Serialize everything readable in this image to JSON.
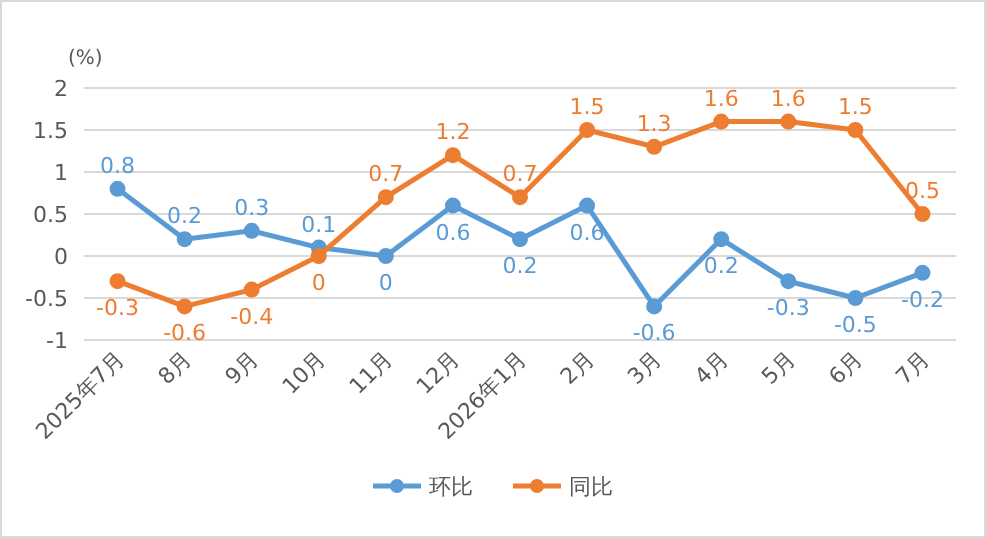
{
  "chart_data": {
    "type": "line",
    "ylabel": "(%)",
    "categories": [
      "2025年7月",
      "8月",
      "9月",
      "10月",
      "11月",
      "12月",
      "2026年1月",
      "2月",
      "3月",
      "4月",
      "5月",
      "6月",
      "7月"
    ],
    "series": [
      {
        "name": "环比",
        "color": "#5b9bd5",
        "values": [
          0.8,
          0.2,
          0.3,
          0.1,
          0,
          0.6,
          0.2,
          0.6,
          -0.6,
          0.2,
          -0.3,
          -0.5,
          -0.2
        ]
      },
      {
        "name": "同比",
        "color": "#ed7d31",
        "values": [
          -0.3,
          -0.6,
          -0.4,
          0,
          0.7,
          1.2,
          0.7,
          1.5,
          1.3,
          1.6,
          1.6,
          1.5,
          0.5
        ]
      }
    ],
    "ylim": [
      -1,
      2
    ],
    "yticks": [
      -1,
      -0.5,
      0,
      0.5,
      1,
      1.5,
      2
    ],
    "grid": "y",
    "legend": "bottom",
    "marker": "circle",
    "line_style": "solid",
    "data_labels": true
  }
}
